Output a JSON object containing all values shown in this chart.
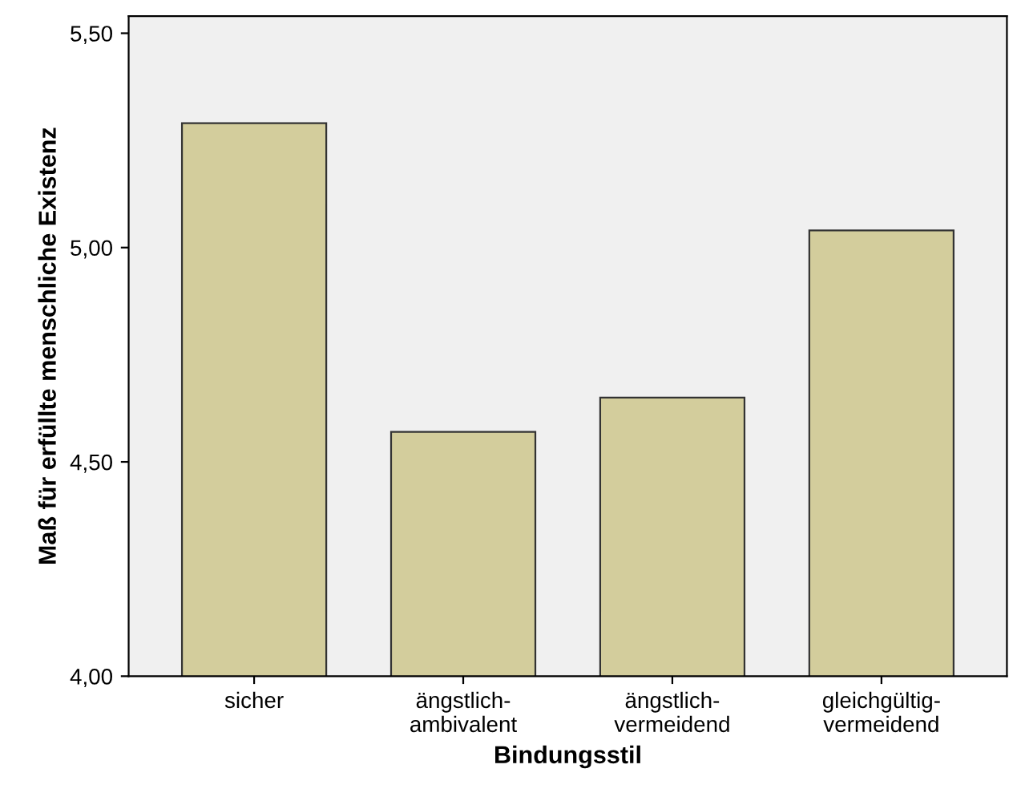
{
  "chart_data": {
    "type": "bar",
    "xlabel": "Bindungsstil",
    "ylabel": "Maß für erfüllte menschliche Existenz",
    "categories": [
      "sicher",
      "ängstlich-\nambivalent",
      "ängstlich-\nvermeidend",
      "gleichgültig-\nvermeidend"
    ],
    "values": [
      5.29,
      4.57,
      4.65,
      5.04
    ],
    "color": "#d3cd9c",
    "ylim": [
      4,
      5.54
    ],
    "yticks": [
      {
        "value": 4,
        "label": "4,00"
      },
      {
        "value": 4.5,
        "label": "4,50"
      },
      {
        "value": 5,
        "label": "5,00"
      },
      {
        "value": 5.5,
        "label": "5,50"
      }
    ],
    "grid": false,
    "legend": false
  }
}
